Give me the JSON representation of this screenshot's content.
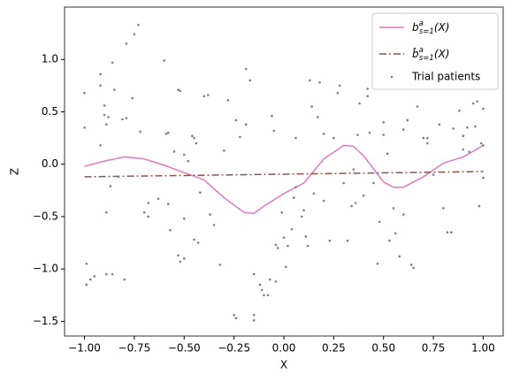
{
  "chart_data": {
    "type": "line",
    "xlabel": "X",
    "ylabel": "Z",
    "xlim": [
      -1.1,
      1.1
    ],
    "ylim": [
      -1.64,
      1.5
    ],
    "xticks": [
      {
        "value": -1,
        "label": "−1.00"
      },
      {
        "value": -0.75,
        "label": "−0.75"
      },
      {
        "value": -0.5,
        "label": "−0.50"
      },
      {
        "value": -0.25,
        "label": "−0.25"
      },
      {
        "value": 0,
        "label": "0.00"
      },
      {
        "value": 0.25,
        "label": "0.25"
      },
      {
        "value": 0.5,
        "label": "0.50"
      },
      {
        "value": 0.75,
        "label": "0.75"
      },
      {
        "value": 1,
        "label": "1.00"
      }
    ],
    "yticks": [
      {
        "value": -1.5,
        "label": "−1.5"
      },
      {
        "value": -1,
        "label": "−1.0"
      },
      {
        "value": -0.5,
        "label": "−0.5"
      },
      {
        "value": 0,
        "label": "0.0"
      },
      {
        "value": 0.5,
        "label": "0.5"
      },
      {
        "value": 1,
        "label": "1.0"
      }
    ],
    "legend": "upper right",
    "series": [
      {
        "name": "b^a_{s=1}(X)",
        "color": "#e377c2",
        "style": "solid",
        "x": [
          -1,
          -0.9,
          -0.8,
          -0.7,
          -0.6,
          -0.5,
          -0.4,
          -0.3,
          -0.2,
          -0.15,
          -0.1,
          0,
          0.1,
          0.2,
          0.3,
          0.35,
          0.4,
          0.5,
          0.55,
          0.6,
          0.7,
          0.8,
          0.9,
          1
        ],
        "values": [
          -0.02,
          0.03,
          0.07,
          0.05,
          -0.01,
          -0.08,
          -0.15,
          -0.32,
          -0.46,
          -0.47,
          -0.4,
          -0.28,
          -0.18,
          0.05,
          0.18,
          0.17,
          0.08,
          -0.17,
          -0.22,
          -0.22,
          -0.12,
          0.01,
          0.07,
          0.18
        ]
      },
      {
        "name": "b̂^a_{s=1}(X)",
        "color": "#8c564b",
        "style": "dashdot",
        "x": [
          -1,
          0,
          1
        ],
        "values": [
          -0.12,
          -0.095,
          -0.07
        ]
      },
      {
        "name": "Trial patients",
        "color": "#7f7f7f",
        "type": "scatter",
        "x": [
          -1,
          -1,
          -0.99,
          -0.99,
          -0.97,
          -0.95,
          -0.92,
          -0.92,
          -0.92,
          -0.9,
          -0.9,
          -0.89,
          -0.89,
          -0.89,
          -0.88,
          -0.87,
          -0.86,
          -0.86,
          -0.85,
          -0.83,
          -0.81,
          -0.8,
          -0.79,
          -0.79,
          -0.76,
          -0.75,
          -0.73,
          -0.72,
          -0.7,
          -0.68,
          -0.68,
          -0.63,
          -0.6,
          -0.59,
          -0.58,
          -0.57,
          -0.55,
          -0.53,
          -0.52,
          -0.53,
          -0.52,
          -0.5,
          -0.5,
          -0.48,
          -0.46,
          -0.45,
          -0.44,
          -0.45,
          -0.43,
          -0.42,
          -0.4,
          -0.38,
          -0.37,
          -0.35,
          -0.32,
          -0.3,
          -0.28,
          -0.25,
          -0.24,
          -0.24,
          -0.22,
          -0.19,
          -0.19,
          -0.17,
          -0.15,
          -0.15,
          -0.15,
          -0.12,
          -0.11,
          -0.1,
          -0.08,
          -0.07,
          -0.06,
          -0.05,
          -0.04,
          -0.04,
          -0.03,
          -0.01,
          0,
          0.01,
          0.02,
          0.04,
          0.05,
          0.06,
          0.09,
          0.1,
          0.11,
          0.12,
          0.13,
          0.14,
          0.15,
          0.17,
          0.18,
          0.2,
          0.2,
          0.23,
          0.25,
          0.27,
          0.28,
          0.3,
          0.32,
          0.34,
          0.36,
          0.37,
          0.38,
          0.4,
          0.42,
          0.42,
          0.43,
          0.45,
          0.47,
          0.48,
          0.5,
          0.5,
          0.52,
          0.53,
          0.55,
          0.56,
          0.58,
          0.6,
          0.62,
          0.64,
          0.65,
          0.67,
          0.7,
          0.72,
          0.72,
          0.75,
          0.78,
          0.8,
          0.82,
          0.84,
          0.85,
          0.88,
          0.9,
          0.9,
          0.92,
          0.93,
          0.95,
          0.96,
          0.97,
          0.98,
          0.99,
          1,
          1,
          1,
          -0.58,
          -0.5,
          0.06,
          0.35,
          0.6
        ],
        "values": [
          0.68,
          0.35,
          -0.95,
          -1.15,
          -1.1,
          -1.07,
          0.86,
          0.75,
          0.18,
          0.56,
          0.47,
          0.38,
          -0.46,
          -1.05,
          0.45,
          -0.21,
          0.97,
          -1.05,
          0.71,
          -0.12,
          0.43,
          -1.1,
          1.15,
          0.44,
          0.63,
          1.24,
          1.33,
          0.31,
          -0.46,
          -0.37,
          -0.5,
          -0.33,
          0.99,
          0.29,
          0.3,
          -0.63,
          0.12,
          0.71,
          0.7,
          -0.87,
          -0.93,
          -0.9,
          0.09,
          0.03,
          0.27,
          0.25,
          0.2,
          -0.72,
          -0.75,
          -0.27,
          0.65,
          0.66,
          -0.48,
          -0.58,
          -0.96,
          0.13,
          0.61,
          -1.44,
          -1.47,
          0.42,
          0.26,
          0.91,
          0.38,
          0.8,
          -1.05,
          -1.44,
          -1.49,
          -1.15,
          -1.2,
          -1.25,
          -1.25,
          -1.1,
          0.46,
          0.32,
          -1.12,
          -0.77,
          -0.8,
          -0.46,
          -0.7,
          -0.98,
          -0.78,
          -0.62,
          -0.32,
          0.25,
          -0.5,
          -0.44,
          -0.69,
          -0.78,
          0.8,
          0.55,
          -0.28,
          0.45,
          0.78,
          0.29,
          -0.35,
          -0.73,
          0.25,
          0.68,
          0.75,
          -0.18,
          -0.73,
          -0.4,
          -0.37,
          0.28,
          0.58,
          -0.3,
          0.72,
          0.65,
          0.3,
          -0.18,
          -0.95,
          -0.55,
          0.4,
          0.28,
          0.1,
          -0.73,
          -0.42,
          -0.66,
          -0.88,
          0.33,
          0.42,
          -0.96,
          -0.99,
          0.55,
          0.25,
          0.25,
          0.2,
          -0.1,
          0.38,
          -0.42,
          -0.65,
          -0.65,
          0.34,
          0.51,
          0.14,
          0.27,
          0.35,
          0.12,
          0.58,
          0.36,
          0.6,
          -0.4,
          0.2,
          0.53,
          0.18,
          -0.13,
          -0.38,
          -0.52,
          -0.22,
          -0.05,
          -0.48
        ]
      }
    ]
  }
}
